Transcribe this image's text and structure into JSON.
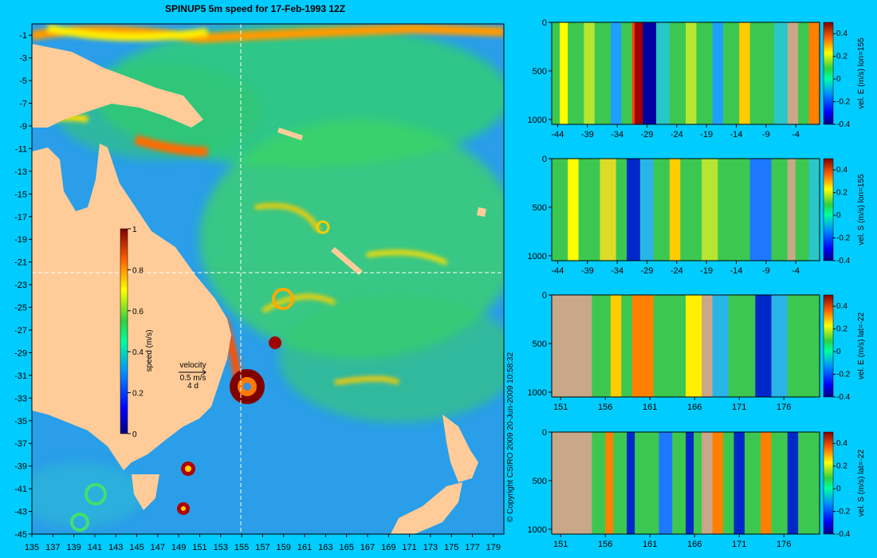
{
  "title": "SPINUP5 5m speed for 17-Feb-1993 12Z",
  "copyright": "© Copyright CSIRO 2009   20-Jun-2009 10:58:32",
  "colors": {
    "background": "#00ccff",
    "land": "#ffcc99",
    "section_land": "#c8a888"
  },
  "chart_data": [
    {
      "type": "heatmap",
      "name": "map",
      "x_ticks": [
        "135",
        "137",
        "139",
        "141",
        "143",
        "145",
        "147",
        "149",
        "151",
        "153",
        "155",
        "157",
        "159",
        "161",
        "163",
        "165",
        "167",
        "169",
        "171",
        "173",
        "175",
        "177",
        "179"
      ],
      "y_ticks": [
        "-1",
        "-3",
        "-5",
        "-7",
        "-9",
        "-11",
        "-13",
        "-15",
        "-17",
        "-19",
        "-21",
        "-23",
        "-25",
        "-27",
        "-29",
        "-31",
        "-33",
        "-35",
        "-37",
        "-39",
        "-41",
        "-43",
        "-45"
      ],
      "xlim": [
        135,
        180
      ],
      "ylim": [
        -45,
        0
      ],
      "crosshair": {
        "lon": 155,
        "lat": -22
      },
      "colorbar": {
        "label": "speed (m/s)",
        "range": [
          0,
          1
        ],
        "ticks": [
          "0",
          "0.2",
          "0.4",
          "0.6",
          "0.8",
          "1"
        ]
      },
      "velocity_key": {
        "label": "velocity",
        "scale": "0.5 m/s",
        "duration": "4 d"
      }
    },
    {
      "type": "heatmap",
      "name": "section-1",
      "x_ticks": [
        "-44",
        "-39",
        "-34",
        "-29",
        "-24",
        "-19",
        "-14",
        "-9",
        "-4"
      ],
      "y_ticks": [
        "0",
        "500",
        "1000"
      ],
      "xlim": [
        -45,
        0
      ],
      "ylim": [
        1050,
        0
      ],
      "colorbar": {
        "label": "vel. E (m/s) lon=155",
        "range": [
          -0.4,
          0.5
        ],
        "ticks": [
          "0.4",
          "0.2",
          "0",
          "-0.2",
          "-0.4"
        ]
      }
    },
    {
      "type": "heatmap",
      "name": "section-2",
      "x_ticks": [
        "-44",
        "-39",
        "-34",
        "-29",
        "-24",
        "-19",
        "-14",
        "-9",
        "-4"
      ],
      "y_ticks": [
        "0",
        "500",
        "1000"
      ],
      "xlim": [
        -45,
        0
      ],
      "ylim": [
        1050,
        0
      ],
      "colorbar": {
        "label": "vel. S (m/s) lon=155",
        "range": [
          -0.4,
          0.5
        ],
        "ticks": [
          "0.4",
          "0.2",
          "0",
          "-0.2",
          "-0.4"
        ]
      }
    },
    {
      "type": "heatmap",
      "name": "section-3",
      "x_ticks": [
        "151",
        "156",
        "161",
        "166",
        "171",
        "176"
      ],
      "y_ticks": [
        "0",
        "500",
        "1000"
      ],
      "xlim": [
        150,
        180
      ],
      "ylim": [
        1050,
        0
      ],
      "colorbar": {
        "label": "vel. E (m/s) lat=-22",
        "range": [
          -0.4,
          0.5
        ],
        "ticks": [
          "0.4",
          "0.2",
          "0",
          "-0.2",
          "-0.4"
        ]
      }
    },
    {
      "type": "heatmap",
      "name": "section-4",
      "x_ticks": [
        "151",
        "156",
        "161",
        "166",
        "171",
        "176"
      ],
      "y_ticks": [
        "0",
        "500",
        "1000"
      ],
      "xlim": [
        150,
        180
      ],
      "ylim": [
        1050,
        0
      ],
      "colorbar": {
        "label": "vel. S (m/s) lat=-22",
        "range": [
          -0.4,
          0.5
        ],
        "ticks": [
          "0.4",
          "0.2",
          "0",
          "-0.2",
          "-0.4"
        ]
      }
    }
  ]
}
